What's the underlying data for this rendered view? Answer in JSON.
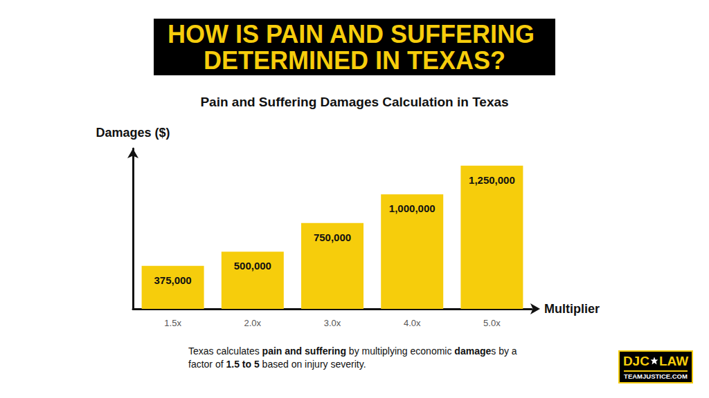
{
  "chart_data": {
    "type": "bar",
    "title": "HOW IS PAIN AND SUFFERING DETERMINED IN TEXAS?",
    "subtitle": "Pain and Suffering Damages Calculation in Texas",
    "y_label": "Damages ($)",
    "x_label": "Multiplier",
    "categories": [
      "1.5x",
      "2.0x",
      "3.0x",
      "4.0x",
      "5.0x"
    ],
    "values": [
      375000,
      500000,
      750000,
      1000000,
      1250000
    ],
    "value_labels": [
      "375,000",
      "500,000",
      "750,000",
      "1,000,000",
      "1,250,000"
    ],
    "color": "#f6cd0c",
    "ylim": [
      0,
      1400000
    ],
    "data_labels": true,
    "tick_labels": "x",
    "grid": false,
    "caption": [
      "Texas calculates ",
      "pain and suffering",
      " by multiplying economic ",
      "damage",
      "s by a factor of ",
      "1.5 to 5",
      " based on injury severity."
    ],
    "logo": [
      "DJC",
      "LAW",
      "TEAMJUSTICE.COM"
    ]
  }
}
